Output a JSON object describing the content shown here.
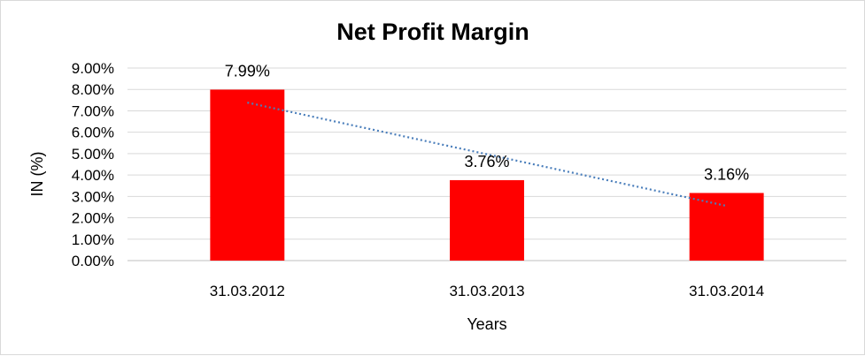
{
  "chart_data": {
    "type": "bar",
    "title": "Net Profit Margin",
    "xlabel": "Years",
    "ylabel": "IN (%)",
    "categories": [
      "31.03.2012",
      "31.03.2013",
      "31.03.2014"
    ],
    "values": [
      7.99,
      3.76,
      3.16
    ],
    "data_labels": [
      "7.99%",
      "3.76%",
      "3.16%"
    ],
    "ylim": [
      0,
      9
    ],
    "yticks": [
      0,
      1,
      2,
      3,
      4,
      5,
      6,
      7,
      8,
      9
    ],
    "ytick_labels": [
      "0.00%",
      "1.00%",
      "2.00%",
      "3.00%",
      "4.00%",
      "5.00%",
      "6.00%",
      "7.00%",
      "8.00%",
      "9.00%"
    ],
    "grid": true,
    "legend": "none",
    "trendline": {
      "type": "linear",
      "style": "dotted",
      "color": "#4a7ebb"
    },
    "colors": {
      "bar": "#ff0000",
      "grid": "#d9d9d9",
      "axis": "#bfbfbf"
    }
  }
}
